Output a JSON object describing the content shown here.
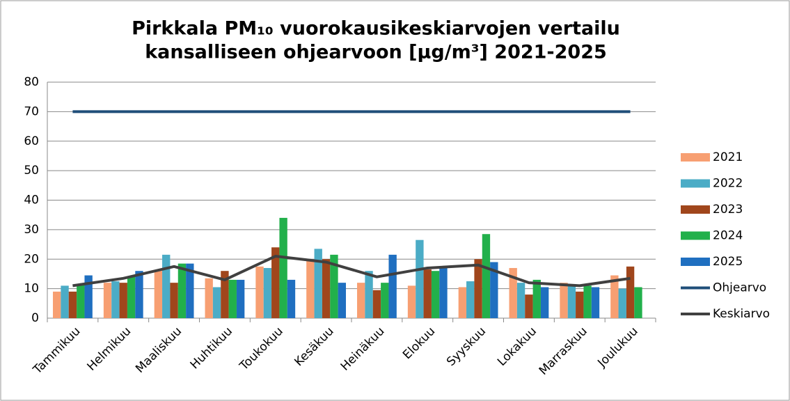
{
  "chart_data": {
    "type": "bar",
    "title": [
      "Pirkkala PM₁₀ vuorokausikeskiarvojen vertailu",
      "kansalliseen ohjearvoon [µg/m³] 2021-2025"
    ],
    "categories": [
      "Tammikuu",
      "Helmikuu",
      "Maaliskuu",
      "Huhtikuu",
      "Toukokuu",
      "Kesäkuu",
      "Heinäkuu",
      "Elokuu",
      "Syyskuu",
      "Lokakuu",
      "Marraskuu",
      "Joulukuu"
    ],
    "series": [
      {
        "name": "2021",
        "color": "#f79f72",
        "values": [
          9,
          12,
          16,
          13.5,
          17.5,
          19.5,
          12,
          11,
          10.5,
          17,
          12,
          14.5
        ]
      },
      {
        "name": "2022",
        "color": "#4bacc6",
        "values": [
          11,
          12.5,
          21.5,
          10.5,
          17,
          23.5,
          16,
          26.5,
          12.5,
          12,
          11.5,
          10
        ]
      },
      {
        "name": "2023",
        "color": "#a0461c",
        "values": [
          9,
          12,
          12,
          16,
          24,
          20,
          9.5,
          16.5,
          20,
          8,
          9,
          17.5
        ]
      },
      {
        "name": "2024",
        "color": "#22b04b",
        "values": [
          11.5,
          14,
          18.5,
          13,
          34,
          21.5,
          12,
          16,
          28.5,
          13,
          11,
          10.5
        ]
      },
      {
        "name": "2025",
        "color": "#1f6fc0",
        "values": [
          14.5,
          16,
          18.5,
          13,
          13,
          12,
          21.5,
          17.5,
          19,
          10.5,
          10.5,
          null
        ]
      },
      {
        "name": "Ohjearvo",
        "type": "line",
        "color": "#1f4e79",
        "values": [
          70,
          70,
          70,
          70,
          70,
          70,
          70,
          70,
          70,
          70,
          70,
          70
        ]
      },
      {
        "name": "Keskiarvo",
        "type": "line",
        "color": "#404040",
        "values": [
          11,
          13.5,
          17.5,
          13,
          21,
          19,
          14,
          17,
          18,
          12,
          11,
          13.5
        ]
      }
    ],
    "ylim": [
      0,
      80
    ],
    "yticks": [
      0,
      10,
      20,
      30,
      40,
      50,
      60,
      70,
      80
    ],
    "grid": true,
    "legend": "right"
  }
}
